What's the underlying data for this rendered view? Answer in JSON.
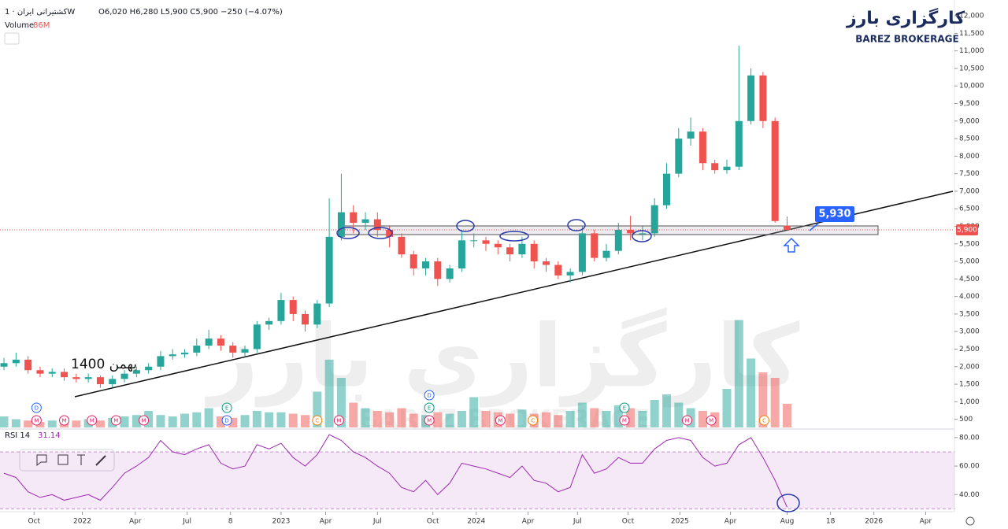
{
  "header": {
    "symbol": "کشتیرانی ایران · 1W",
    "ohlc": "O6,020 H6,280 L5,900 C5,900 −250 (−4.07%)",
    "volume_name": "Volume",
    "volume_value": "86M"
  },
  "logo": {
    "name": "کارگزاری بارز",
    "latin": "BAREZ BROKERAGE"
  },
  "chart_data": {
    "type": "candlestick",
    "open": [
      2000,
      2100,
      2200,
      1900,
      1800,
      1850,
      1700,
      1650,
      1700,
      1500,
      1650,
      1800,
      1900,
      2000,
      2300,
      2350,
      2400,
      2600,
      2800,
      2600,
      2400,
      2500,
      3200,
      3300,
      3900,
      3500,
      3200,
      3800,
      5700,
      6400,
      6100,
      6200,
      5900,
      5700,
      5200,
      4800,
      5000,
      4500,
      4800,
      5600,
      5600,
      5500,
      5400,
      5200,
      5500,
      5000,
      4900,
      4600,
      4700,
      5800,
      5100,
      5300,
      5900,
      5800,
      5800,
      6600,
      7500,
      8500,
      8700,
      7800,
      7600,
      7700,
      9000,
      10300,
      9000,
      6020
    ],
    "high": [
      2250,
      2400,
      2300,
      2000,
      1950,
      1950,
      1800,
      1800,
      1750,
      1750,
      1900,
      2000,
      2100,
      2450,
      2500,
      2500,
      2800,
      3050,
      2900,
      2700,
      2600,
      3300,
      3400,
      4100,
      4000,
      3600,
      3900,
      6800,
      7500,
      6600,
      6400,
      6400,
      6000,
      5800,
      5300,
      5100,
      5100,
      4900,
      5900,
      5800,
      5700,
      5600,
      5500,
      5700,
      5600,
      5100,
      5000,
      4800,
      6000,
      5900,
      5500,
      6100,
      6300,
      6000,
      6800,
      7800,
      8800,
      9100,
      8800,
      7900,
      7900,
      11150,
      10500,
      10400,
      9100,
      6280
    ],
    "low": [
      1900,
      2000,
      1800,
      1700,
      1700,
      1600,
      1550,
      1550,
      1400,
      1400,
      1550,
      1700,
      1800,
      1900,
      2200,
      2250,
      2300,
      2500,
      2450,
      2250,
      2300,
      2400,
      3050,
      3200,
      3300,
      3000,
      3100,
      3700,
      5600,
      5800,
      5900,
      5700,
      5400,
      5100,
      4600,
      4600,
      4300,
      4400,
      4700,
      5400,
      5300,
      5200,
      5000,
      5100,
      4800,
      4700,
      4500,
      4400,
      4600,
      5000,
      5000,
      5200,
      5600,
      5600,
      5700,
      6500,
      7400,
      8300,
      7600,
      7500,
      7500,
      7600,
      8900,
      8800,
      6100,
      5900
    ],
    "close": [
      2100,
      2200,
      1900,
      1800,
      1850,
      1700,
      1650,
      1700,
      1500,
      1650,
      1800,
      1900,
      2000,
      2300,
      2350,
      2400,
      2600,
      2800,
      2600,
      2400,
      2500,
      3200,
      3300,
      3900,
      3500,
      3200,
      3800,
      5700,
      6400,
      6100,
      6200,
      5900,
      5700,
      5200,
      4800,
      5000,
      4500,
      4800,
      5600,
      5600,
      5500,
      5400,
      5200,
      5500,
      5000,
      4900,
      4600,
      4700,
      5800,
      5100,
      5300,
      5900,
      5800,
      5800,
      6600,
      7500,
      8500,
      8700,
      7800,
      7600,
      7700,
      9000,
      10300,
      9000,
      6150,
      5900
    ],
    "volume": [
      40,
      30,
      25,
      20,
      25,
      20,
      25,
      30,
      25,
      35,
      40,
      45,
      60,
      45,
      40,
      50,
      55,
      70,
      40,
      35,
      45,
      60,
      55,
      55,
      50,
      45,
      130,
      246,
      180,
      90,
      70,
      60,
      55,
      70,
      50,
      45,
      55,
      50,
      60,
      110,
      60,
      55,
      50,
      65,
      50,
      55,
      45,
      60,
      90,
      70,
      60,
      80,
      70,
      60,
      100,
      120,
      90,
      70,
      60,
      55,
      140,
      390,
      250,
      200,
      180,
      86
    ],
    "volume_lim": [
      0,
      400
    ],
    "up_color": "#26a69a",
    "down_color": "#ef5350",
    "last_price_label": "5,900",
    "xlim": [
      -0.33,
      78.89
    ],
    "xticks": [
      {
        "value": 2.5,
        "label": "Oct"
      },
      {
        "value": 6.5,
        "label": "2022"
      },
      {
        "value": 10.9,
        "label": "Apr"
      },
      {
        "value": 15.2,
        "label": "Jul"
      },
      {
        "value": 18.8,
        "label": "8"
      },
      {
        "value": 23,
        "label": "2023"
      },
      {
        "value": 26.7,
        "label": "Apr"
      },
      {
        "value": 31,
        "label": "Jul"
      },
      {
        "value": 35.6,
        "label": "Oct"
      },
      {
        "value": 39.2,
        "label": "2024"
      },
      {
        "value": 43.5,
        "label": "Apr"
      },
      {
        "value": 47.6,
        "label": "Jul"
      },
      {
        "value": 51.8,
        "label": "Oct"
      },
      {
        "value": 56.1,
        "label": "2025"
      },
      {
        "value": 60.3,
        "label": "Apr"
      },
      {
        "value": 65,
        "label": "Aug"
      },
      {
        "value": 68.6,
        "label": "18"
      },
      {
        "value": 72.2,
        "label": "2026"
      },
      {
        "value": 76.5,
        "label": "Apr"
      }
    ],
    "ylim": [
      200,
      12450
    ],
    "yticks": [
      {
        "value": 12000,
        "label": "12,000"
      },
      {
        "value": 11500,
        "label": "11,500"
      },
      {
        "value": 11000,
        "label": "11,000"
      },
      {
        "value": 10500,
        "label": "10,500"
      },
      {
        "value": 10000,
        "label": "10,000"
      },
      {
        "value": 9500,
        "label": "9,500"
      },
      {
        "value": 9000,
        "label": "9,000"
      },
      {
        "value": 8500,
        "label": "8,500"
      },
      {
        "value": 8000,
        "label": "8,000"
      },
      {
        "value": 7500,
        "label": "7,500"
      },
      {
        "value": 7000,
        "label": "7,000"
      },
      {
        "value": 6500,
        "label": "6,500"
      },
      {
        "value": 6000,
        "label": "6,000"
      },
      {
        "value": 5500,
        "label": "5,500"
      },
      {
        "value": 5000,
        "label": "5,000"
      },
      {
        "value": 4500,
        "label": "4,500"
      },
      {
        "value": 4000,
        "label": "4,000"
      },
      {
        "value": 3500,
        "label": "3,500"
      },
      {
        "value": 3000,
        "label": "3,000"
      },
      {
        "value": 2500,
        "label": "2,500"
      },
      {
        "value": 2000,
        "label": "2,000"
      },
      {
        "value": 1500,
        "label": "1,500"
      },
      {
        "value": 1000,
        "label": "1,000"
      },
      500
    ],
    "events": [
      {
        "x": 2.7,
        "label": "M"
      },
      {
        "x": 2.7,
        "label": "D"
      },
      {
        "x": 5.0,
        "label": "M"
      },
      {
        "x": 7.3,
        "label": "M"
      },
      {
        "x": 9.3,
        "label": "M"
      },
      {
        "x": 11.6,
        "label": "M"
      },
      {
        "x": 18.5,
        "label": "D"
      },
      {
        "x": 18.5,
        "label": "E"
      },
      {
        "x": 26.0,
        "label": "C"
      },
      {
        "x": 27.8,
        "label": "M"
      },
      {
        "x": 35.3,
        "label": "M"
      },
      {
        "x": 35.3,
        "label": "E"
      },
      {
        "x": 35.3,
        "label": "D"
      },
      {
        "x": 41.2,
        "label": "M"
      },
      {
        "x": 43.9,
        "label": "C"
      },
      {
        "x": 51.5,
        "label": "M"
      },
      {
        "x": 51.5,
        "label": "E"
      },
      {
        "x": 56.7,
        "label": "M"
      },
      {
        "x": 58.7,
        "label": "M"
      },
      {
        "x": 63.1,
        "label": "C"
      }
    ]
  },
  "rsi": {
    "name": "RSI 14",
    "last": "31.14",
    "values": [
      55,
      52,
      42,
      38,
      40,
      36,
      38,
      40,
      36,
      45,
      55,
      60,
      66,
      78,
      70,
      68,
      72,
      75,
      62,
      58,
      60,
      75,
      72,
      76,
      66,
      60,
      68,
      82,
      78,
      70,
      66,
      60,
      55,
      45,
      42,
      50,
      40,
      48,
      62,
      60,
      58,
      55,
      52,
      60,
      50,
      48,
      42,
      45,
      68,
      55,
      58,
      66,
      62,
      62,
      72,
      78,
      80,
      78,
      66,
      60,
      62,
      75,
      80,
      66,
      50,
      31.14
    ],
    "ylim": [
      28,
      86
    ],
    "bands": [
      30,
      70
    ],
    "yticks": [
      {
        "value": 80,
        "label": "80.00"
      },
      {
        "value": 60,
        "label": "60.00"
      },
      {
        "value": 40,
        "label": "40.00"
      }
    ]
  },
  "annotations": {
    "level_label": "5,930",
    "wave_label": "بهمن 1400"
  }
}
